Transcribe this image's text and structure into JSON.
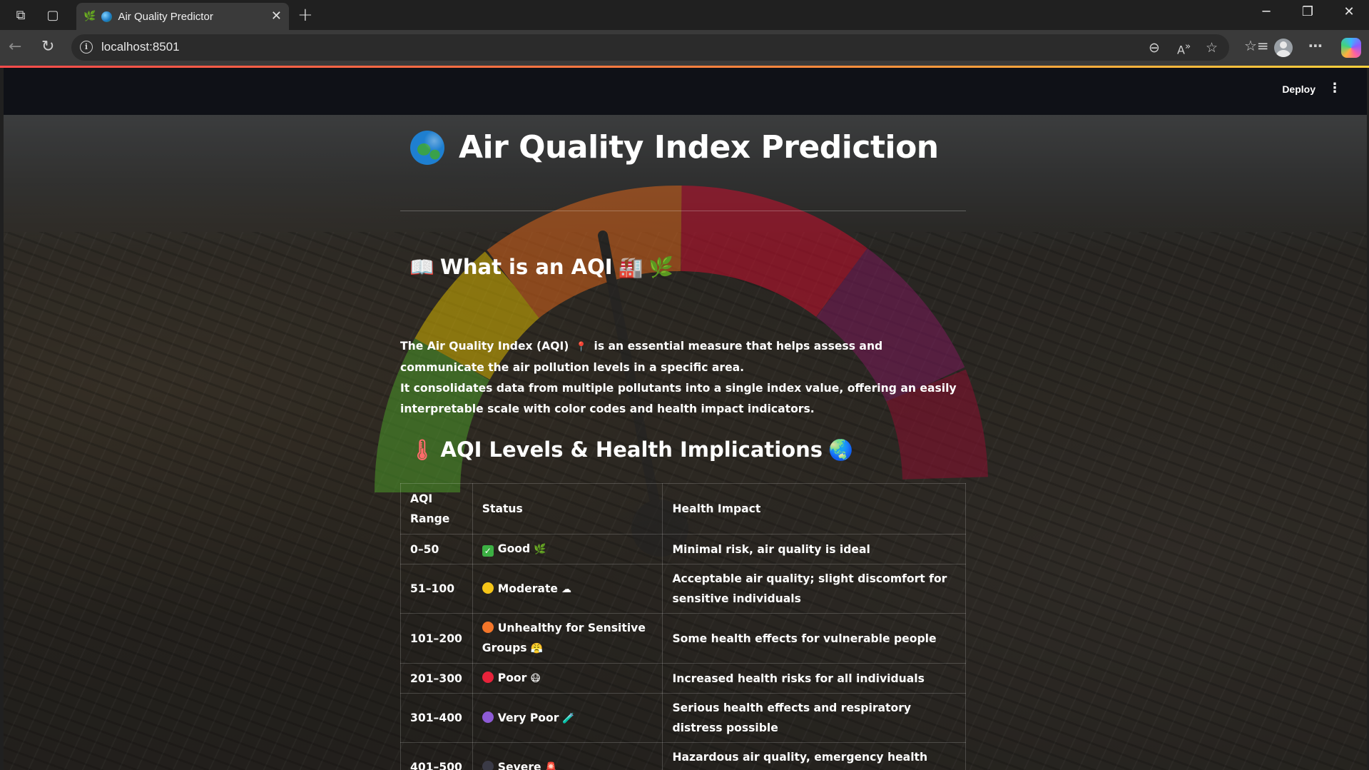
{
  "browser": {
    "tab_title": "Air Quality Predictor",
    "url": "localhost:8501"
  },
  "app": {
    "deploy_label": "Deploy",
    "title": "Air Quality Index Prediction",
    "section1": {
      "heading": "What is an AQI",
      "paragraph_line1_a": "The Air Quality Index (AQI)",
      "paragraph_line1_b": "is an essential measure that helps assess and communicate the air pollution levels in a specific area.",
      "paragraph_line2": "It consolidates data from multiple pollutants into a single index value, offering an easily interpretable scale with color codes and health impact indicators."
    },
    "section2": {
      "heading": "AQI Levels & Health Implications"
    },
    "table": {
      "headers": [
        "AQI Range",
        "Status",
        "Health Impact"
      ],
      "rows": [
        {
          "range": "0–50",
          "status": "Good",
          "impact": "Minimal risk, air quality is ideal",
          "color": "#3cb043",
          "emoji": "🌿"
        },
        {
          "range": "51–100",
          "status": "Moderate",
          "impact": "Acceptable air quality; slight discomfort for sensitive individuals",
          "color": "#f5c518",
          "emoji": "☁"
        },
        {
          "range": "101–200",
          "status": "Unhealthy for Sensitive Groups",
          "impact": "Some health effects for vulnerable people",
          "color": "#f4762a",
          "emoji": "😤"
        },
        {
          "range": "201–300",
          "status": "Poor",
          "impact": "Increased health risks for all individuals",
          "color": "#e8233b",
          "emoji": "😷"
        },
        {
          "range": "301–400",
          "status": "Very Poor",
          "impact": "Serious health effects and respiratory distress possible",
          "color": "#8e5bd6",
          "emoji": "🧪"
        },
        {
          "range": "401–500",
          "status": "Severe",
          "impact": "Hazardous air quality, emergency health warnings",
          "color": "#3a3a46",
          "emoji": "🚨"
        }
      ]
    }
  }
}
